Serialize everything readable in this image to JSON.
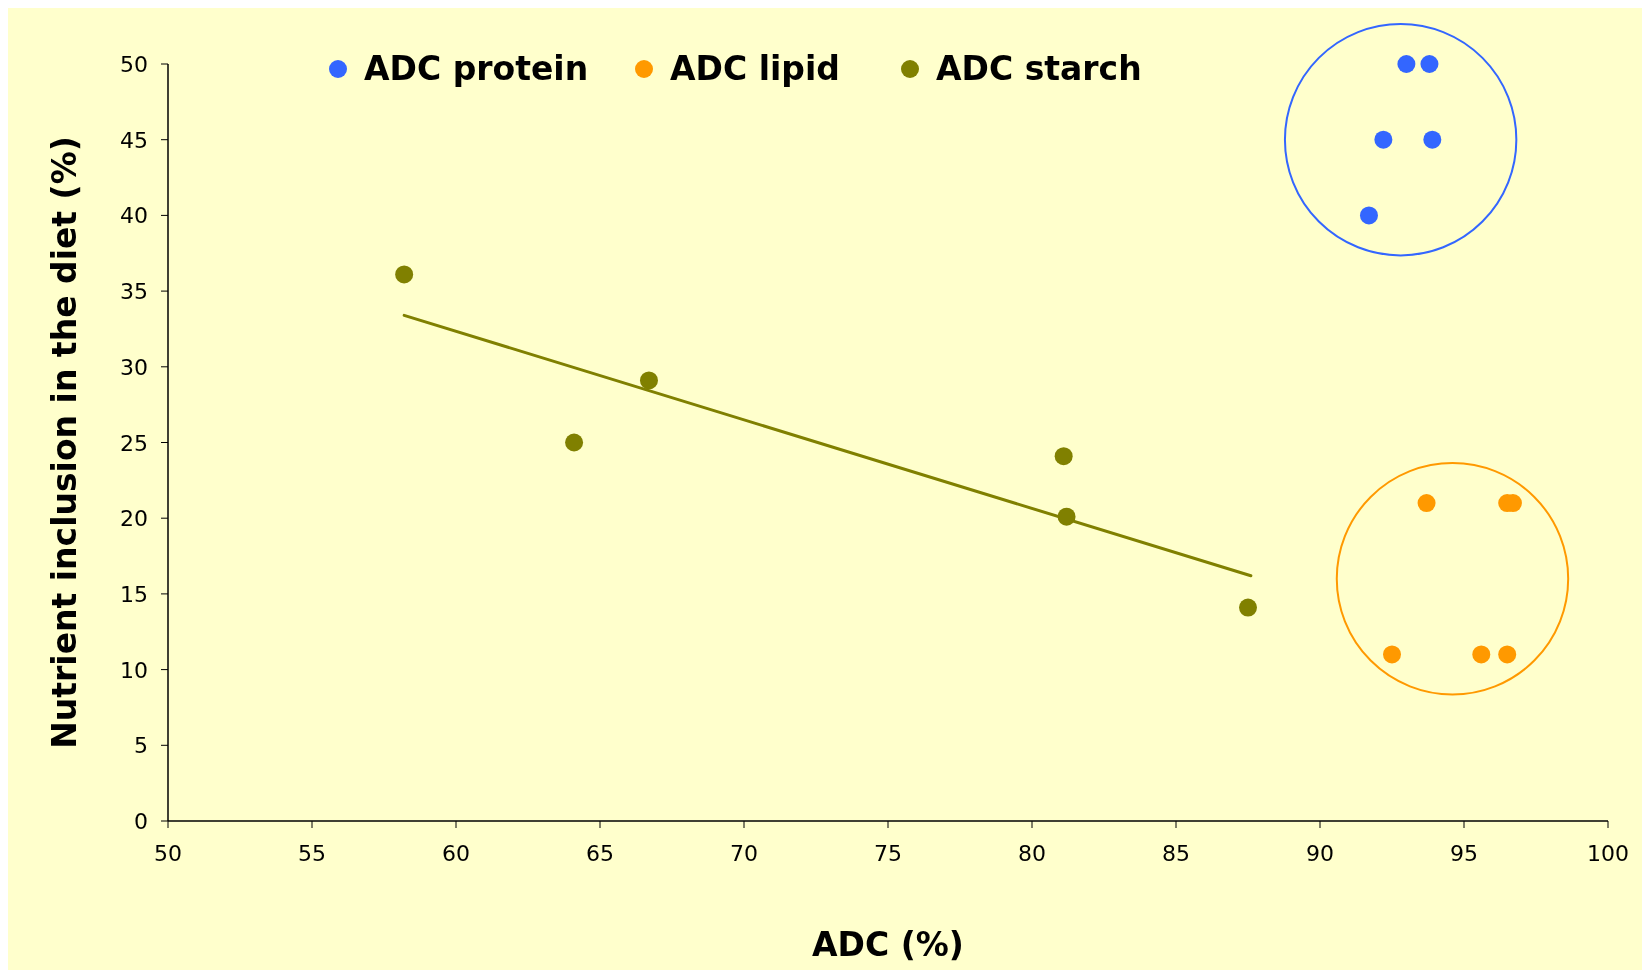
{
  "chart_data": {
    "type": "scatter",
    "xlabel": "ADC (%)",
    "ylabel": "Nutrient inclusion in the diet (%)",
    "xlim": [
      50,
      100
    ],
    "xticks": [
      50,
      55,
      60,
      65,
      70,
      75,
      80,
      85,
      90,
      95,
      100
    ],
    "ylim": [
      0,
      50
    ],
    "yticks": [
      0,
      5,
      10,
      15,
      20,
      25,
      30,
      35,
      40,
      45,
      50
    ],
    "grid": false,
    "legend": "top",
    "marker": "circle",
    "series": [
      {
        "name": "ADC protein",
        "color": "#3366ff",
        "x": [
          91.7,
          92.2,
          93.0,
          93.8,
          93.9
        ],
        "values": [
          40,
          45,
          50,
          50,
          45
        ]
      },
      {
        "name": "ADC lipid",
        "color": "#ff9900",
        "x": [
          93.7,
          96.5,
          96.7,
          92.5,
          95.6,
          96.5
        ],
        "values": [
          21,
          21,
          21,
          11,
          11,
          11
        ]
      },
      {
        "name": "ADC starch",
        "color": "#808000",
        "x": [
          58.2,
          64.1,
          66.7,
          81.1,
          81.2,
          87.5
        ],
        "values": [
          36.1,
          25,
          29.1,
          24.1,
          20.1,
          14.1
        ]
      },
      {
        "type": "line",
        "marker": "none",
        "color": "#808000",
        "x": [
          58.2,
          87.6
        ],
        "values": [
          33.4,
          16.2
        ]
      }
    ]
  }
}
